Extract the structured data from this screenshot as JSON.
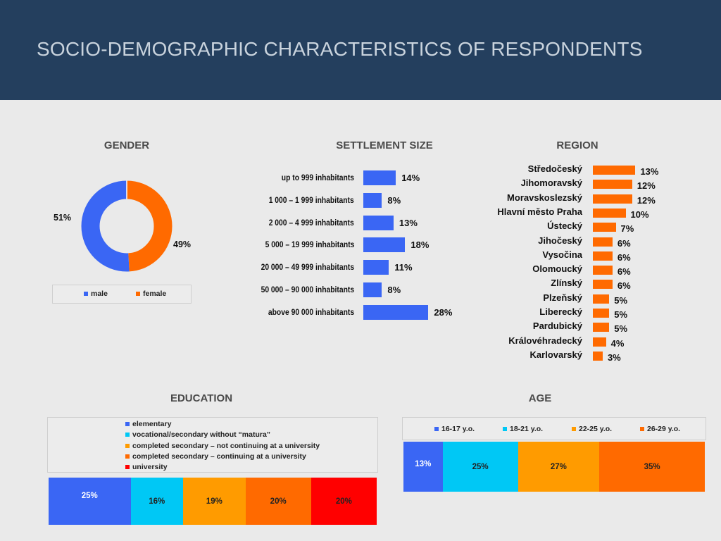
{
  "page": {
    "title": "SOCIO-DEMOGRAPHIC CHARACTERISTICS OF RESPONDENTS"
  },
  "colors": {
    "blue": "#3a66f4",
    "cyan": "#00c8f5",
    "amber": "#ff9b00",
    "orange": "#ff6a00",
    "red": "#ff0000",
    "header": "#243f5e"
  },
  "chart_data": [
    {
      "type": "pie",
      "title": "GENDER",
      "categories": [
        "male",
        "female"
      ],
      "values": [
        51,
        49
      ],
      "value_labels": [
        "51%",
        "49%"
      ],
      "legend": "bottom"
    },
    {
      "type": "bar",
      "orientation": "horizontal",
      "title": "SETTLEMENT SIZE",
      "categories": [
        "up to 999 inhabitants",
        "1 000 – 1 999 inhabitants",
        "2 000 – 4 999 inhabitants",
        "5 000 – 19 999 inhabitants",
        "20 000 – 49 999 inhabitants",
        "50 000 – 90 000 inhabitants",
        "above 90 000 inhabitants"
      ],
      "values": [
        14,
        8,
        13,
        18,
        11,
        8,
        28
      ],
      "value_labels": [
        "14%",
        "8%",
        "13%",
        "18%",
        "11%",
        "8%",
        "28%"
      ]
    },
    {
      "type": "bar",
      "orientation": "horizontal",
      "title": "REGION",
      "categories": [
        "Středočeský",
        "Jihomoravský",
        "Moravskoslezský",
        "Hlavní město Praha",
        "Ústecký",
        "Jihočeský",
        "Vysočina",
        "Olomoucký",
        "Zlínský",
        "Plzeňský",
        "Liberecký",
        "Pardubický",
        "Královéhradecký",
        "Karlovarský"
      ],
      "values": [
        13,
        12,
        12,
        10,
        7,
        6,
        6,
        6,
        6,
        5,
        5,
        5,
        4,
        3
      ],
      "value_labels": [
        "13%",
        "12%",
        "12%",
        "10%",
        "7%",
        "6%",
        "6%",
        "6%",
        "6%",
        "5%",
        "5%",
        "5%",
        "4%",
        "3%"
      ]
    },
    {
      "type": "bar",
      "orientation": "stacked-100",
      "title": "EDUCATION",
      "categories": [
        "elementary",
        "vocational/secondary without “matura”",
        "completed secondary  – not continuing at a university",
        "completed secondary – continuing at a university",
        "university"
      ],
      "values": [
        25,
        16,
        19,
        20,
        20
      ],
      "value_labels": [
        "25%",
        "16%",
        "19%",
        "20%",
        "20%"
      ],
      "legend": "top"
    },
    {
      "type": "bar",
      "orientation": "stacked-100",
      "title": "AGE",
      "categories": [
        "16-17 y.o.",
        "18-21 y.o.",
        "22-25 y.o.",
        "26-29 y.o."
      ],
      "values": [
        13,
        25,
        27,
        35
      ],
      "value_labels": [
        "13%",
        "25%",
        "27%",
        "35%"
      ],
      "legend": "top"
    }
  ]
}
